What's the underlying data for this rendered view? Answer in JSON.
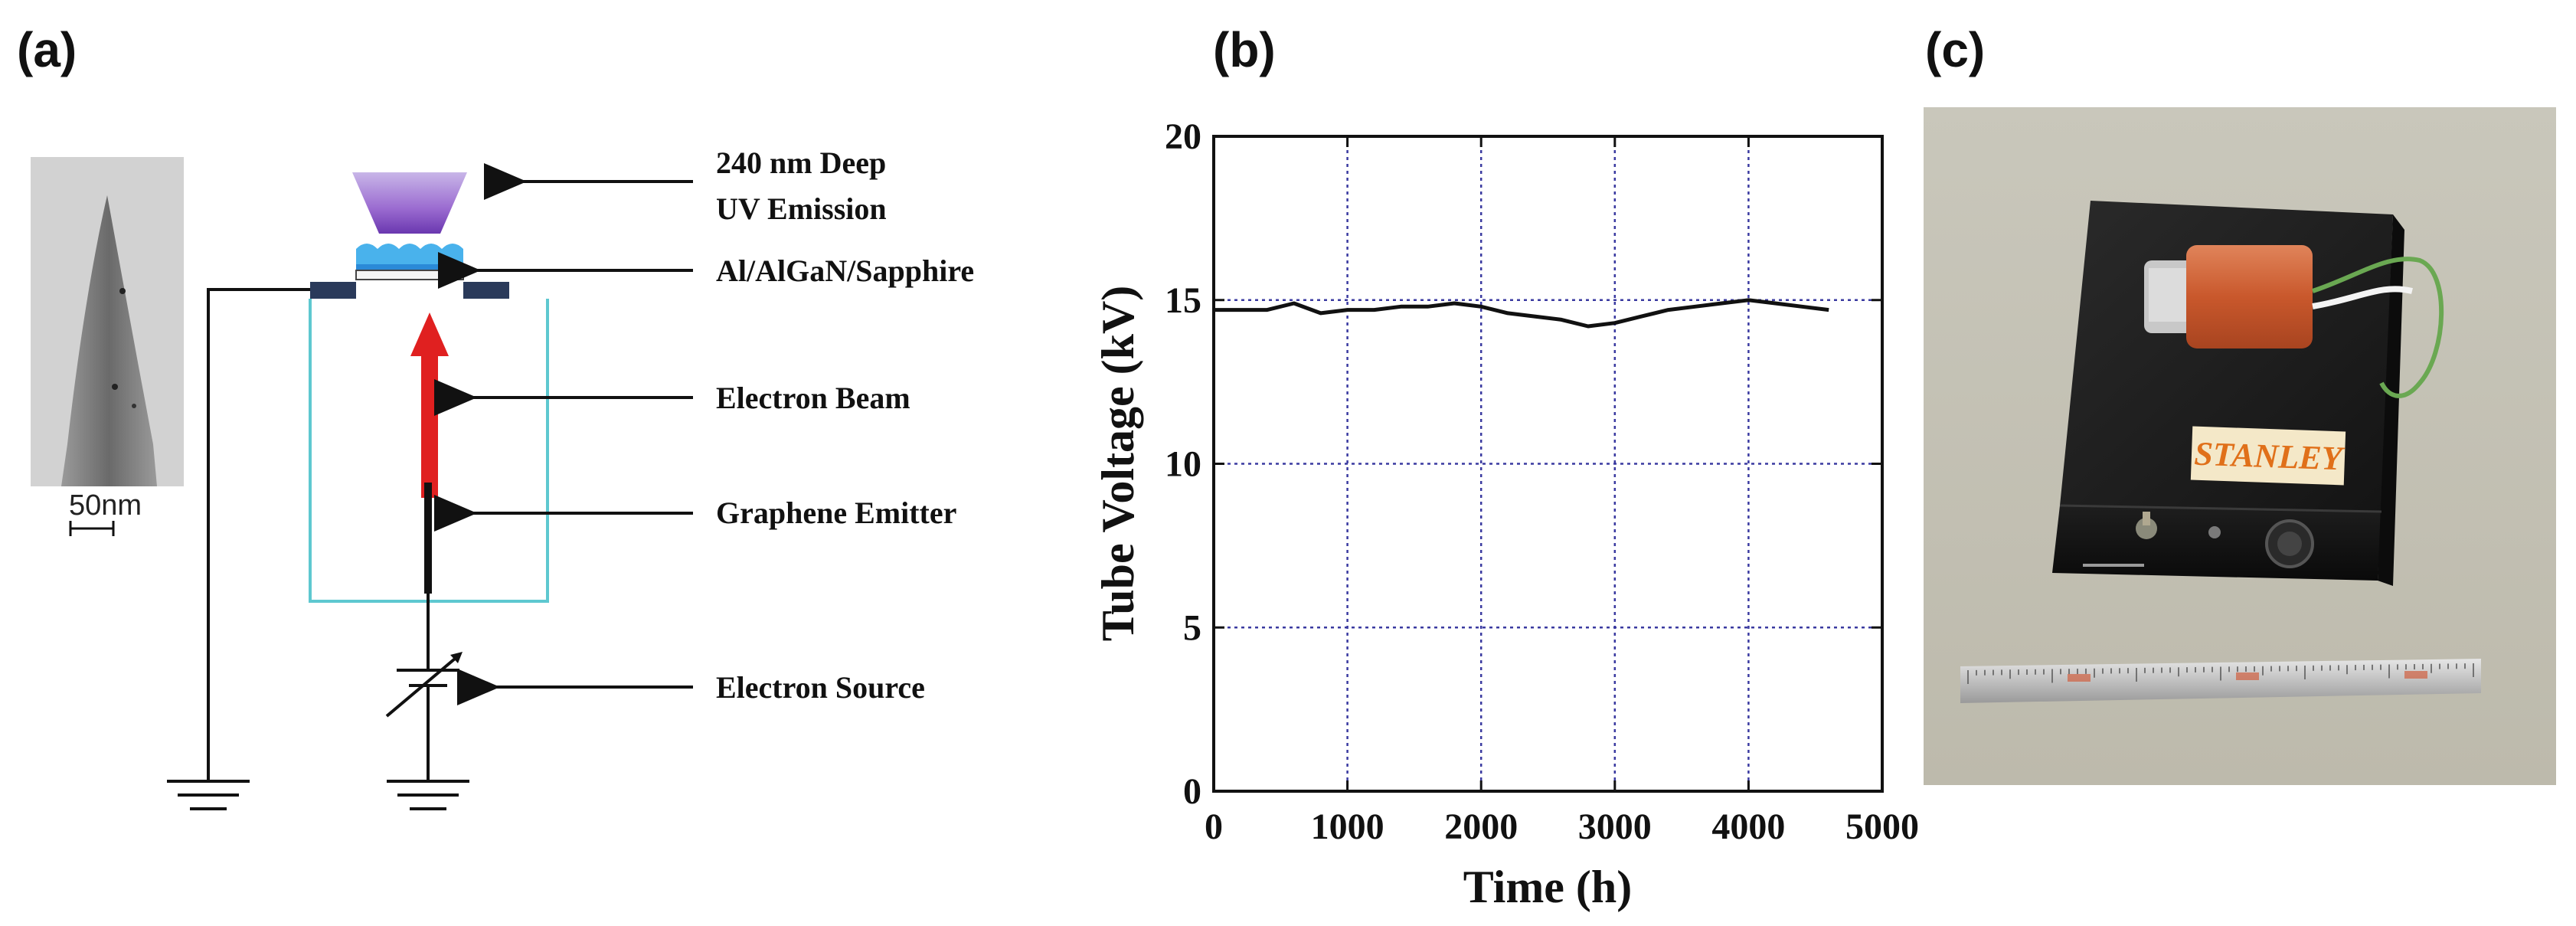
{
  "panels": {
    "a": {
      "label": "(a)"
    },
    "b": {
      "label": "(b)"
    },
    "c": {
      "label": "(c)"
    }
  },
  "diagram": {
    "scale_bar": "50nm",
    "callouts": [
      {
        "line1": "240 nm Deep",
        "line2": "UV Emission"
      },
      {
        "line1": "Al/AlGaN/Sapphire",
        "line2": ""
      },
      {
        "line1": "Electron Beam",
        "line2": ""
      },
      {
        "line1": "Graphene Emitter",
        "line2": ""
      },
      {
        "line1": "Electron Source",
        "line2": ""
      }
    ],
    "colors": {
      "uv_emission": "#8a5ac8",
      "sapphire": "#3aa0e0",
      "electron_beam": "#e02020",
      "chamber": "#5ec8d0",
      "contact": "#2a3a5a"
    }
  },
  "chart_data": {
    "type": "line",
    "title": "",
    "xlabel": "Time (h)",
    "ylabel": "Tube Voltage (kV)",
    "xlim": [
      0,
      5000
    ],
    "ylim": [
      0,
      20
    ],
    "xticks": [
      0,
      1000,
      2000,
      3000,
      4000,
      5000
    ],
    "yticks": [
      0,
      5,
      10,
      15,
      20
    ],
    "grid": true,
    "series": [
      {
        "name": "",
        "x": [
          0,
          200,
          400,
          600,
          800,
          1000,
          1200,
          1400,
          1600,
          1800,
          2000,
          2200,
          2400,
          2600,
          2800,
          3000,
          3200,
          3400,
          3600,
          3800,
          4000,
          4200,
          4400,
          4600
        ],
        "y": [
          14.7,
          14.7,
          14.7,
          14.9,
          14.6,
          14.7,
          14.7,
          14.8,
          14.8,
          14.9,
          14.8,
          14.6,
          14.5,
          14.4,
          14.2,
          14.3,
          14.5,
          14.7,
          14.8,
          14.9,
          15.0,
          14.9,
          14.8,
          14.7
        ]
      }
    ]
  },
  "photo": {
    "brand": "STANLEY"
  }
}
